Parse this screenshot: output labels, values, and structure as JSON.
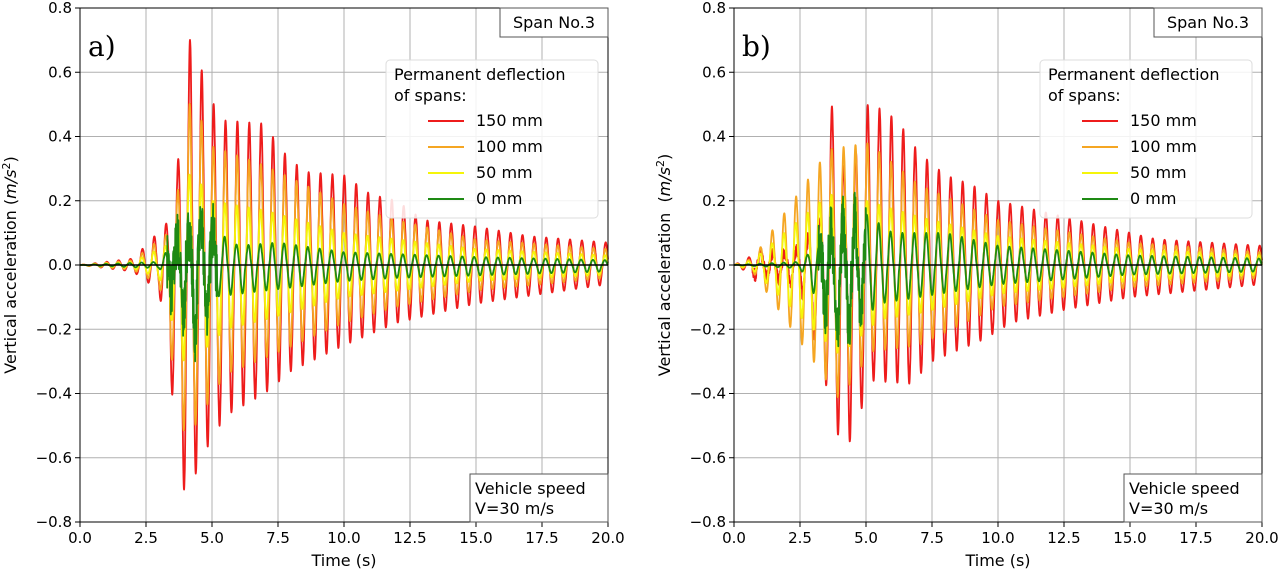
{
  "chart_data": [
    {
      "type": "line",
      "panel_label": "a)",
      "xlabel": "Time (s)",
      "ylabel": {
        "prefix": "Vertical acceleration (",
        "unit": "m/s",
        "sup": "2",
        "suffix": ")"
      },
      "xlim": [
        0,
        20
      ],
      "ylim": [
        -0.8,
        0.8
      ],
      "xticks": [
        "0.0",
        "2.5",
        "5.0",
        "7.5",
        "10.0",
        "12.5",
        "15.0",
        "17.5",
        "20.0"
      ],
      "yticks": [
        "0.8",
        "0.6",
        "0.4",
        "0.2",
        "0.0",
        "−0.2",
        "−0.4",
        "−0.6",
        "−0.8"
      ],
      "grid": true,
      "annotation_top": "Span No.3",
      "annotation_bottom": [
        "Vehicle speed",
        "V=30 m/s"
      ],
      "legend": {
        "title": [
          "Permanent deflection",
          "of spans:"
        ],
        "placement": "upper-right"
      },
      "oscillation_period_s": 0.45,
      "series": [
        {
          "name": "150 mm",
          "color": "#ee1c1c",
          "peak_max": [
            [
              0,
              0
            ],
            [
              1,
              0.01
            ],
            [
              2,
              0.02
            ],
            [
              2.6,
              0.07
            ],
            [
              3.5,
              0.15
            ],
            [
              4.2,
              0.73
            ],
            [
              4.9,
              0.52
            ],
            [
              5.5,
              0.45
            ],
            [
              7,
              0.44
            ],
            [
              7.6,
              0.36
            ],
            [
              8.5,
              0.29
            ],
            [
              10,
              0.28
            ],
            [
              11,
              0.22
            ],
            [
              12,
              0.2
            ],
            [
              13,
              0.14
            ],
            [
              15,
              0.12
            ],
            [
              17,
              0.09
            ],
            [
              20,
              0.07
            ]
          ],
          "peak_min": [
            [
              0,
              0
            ],
            [
              2,
              -0.02
            ],
            [
              3,
              -0.08
            ],
            [
              4,
              -0.74
            ],
            [
              4.6,
              -0.6
            ],
            [
              5.5,
              -0.47
            ],
            [
              7,
              -0.4
            ],
            [
              8,
              -0.33
            ],
            [
              10,
              -0.25
            ],
            [
              12,
              -0.18
            ],
            [
              15,
              -0.12
            ],
            [
              20,
              -0.06
            ]
          ]
        },
        {
          "name": "100 mm",
          "color": "#f5a623",
          "peak_max": [
            [
              0,
              0
            ],
            [
              2,
              0.015
            ],
            [
              3.5,
              0.11
            ],
            [
              4.2,
              0.53
            ],
            [
              5,
              0.37
            ],
            [
              7,
              0.31
            ],
            [
              10,
              0.19
            ],
            [
              12,
              0.14
            ],
            [
              15,
              0.08
            ],
            [
              20,
              0.05
            ]
          ],
          "peak_min": [
            [
              0,
              0
            ],
            [
              2,
              -0.015
            ],
            [
              3,
              -0.06
            ],
            [
              4,
              -0.55
            ],
            [
              5.5,
              -0.34
            ],
            [
              7,
              -0.29
            ],
            [
              10,
              -0.18
            ],
            [
              12,
              -0.13
            ],
            [
              15,
              -0.08
            ],
            [
              20,
              -0.04
            ]
          ]
        },
        {
          "name": "50 mm",
          "color": "#f5f50a",
          "peak_max": [
            [
              0,
              0
            ],
            [
              2,
              0.01
            ],
            [
              3.5,
              0.07
            ],
            [
              4.2,
              0.3
            ],
            [
              5,
              0.2
            ],
            [
              7,
              0.17
            ],
            [
              10,
              0.1
            ],
            [
              15,
              0.05
            ],
            [
              20,
              0.03
            ]
          ],
          "peak_min": [
            [
              0,
              0
            ],
            [
              2,
              -0.01
            ],
            [
              3,
              -0.04
            ],
            [
              4,
              -0.32
            ],
            [
              5.5,
              -0.2
            ],
            [
              7,
              -0.17
            ],
            [
              10,
              -0.1
            ],
            [
              15,
              -0.05
            ],
            [
              20,
              -0.03
            ]
          ]
        },
        {
          "name": "0 mm",
          "color": "#1e8a14",
          "peak_max": [
            [
              0,
              0
            ],
            [
              3,
              0.01
            ],
            [
              3.6,
              0.08
            ],
            [
              4.7,
              0.13
            ],
            [
              6,
              0.06
            ],
            [
              7.5,
              0.07
            ],
            [
              10,
              0.04
            ],
            [
              15,
              0.025
            ],
            [
              20,
              0.015
            ]
          ],
          "peak_min": [
            [
              0,
              0
            ],
            [
              3,
              -0.01
            ],
            [
              3.6,
              -0.1
            ],
            [
              4.2,
              -0.25
            ],
            [
              5,
              -0.1
            ],
            [
              7,
              -0.08
            ],
            [
              10,
              -0.05
            ],
            [
              12,
              -0.04
            ],
            [
              20,
              -0.02
            ]
          ],
          "noise": [
            3.3,
            5.2,
            0.09
          ]
        }
      ]
    },
    {
      "type": "line",
      "panel_label": "b)",
      "xlabel": "Time (s)",
      "ylabel": {
        "prefix": "Vertical acceleration  (",
        "unit": "m/s",
        "sup": "2",
        "suffix": ")"
      },
      "xlim": [
        0,
        20
      ],
      "ylim": [
        -0.8,
        0.8
      ],
      "xticks": [
        "0.0",
        "2.5",
        "5.0",
        "7.5",
        "10.0",
        "12.5",
        "15.0",
        "17.5",
        "20.0"
      ],
      "yticks": [
        "0.8",
        "0.6",
        "0.4",
        "0.2",
        "0.0",
        "−0.2",
        "−0.4",
        "−0.6",
        "−0.8"
      ],
      "grid": true,
      "annotation_top": "Span No.3",
      "annotation_bottom": [
        "Vehicle speed",
        "V=30 m/s"
      ],
      "legend": {
        "title": [
          "Permanent deflection",
          "of spans:"
        ],
        "placement": "upper-right"
      },
      "oscillation_period_s": 0.45,
      "series": [
        {
          "name": "150 mm",
          "color": "#ee1c1c",
          "peak_max": [
            [
              0,
              0
            ],
            [
              0.7,
              0.03
            ],
            [
              2.5,
              0.05
            ],
            [
              3.3,
              0.15
            ],
            [
              3.6,
              0.54
            ],
            [
              4.3,
              0.25
            ],
            [
              5.1,
              0.51
            ],
            [
              6.2,
              0.45
            ],
            [
              7,
              0.35
            ],
            [
              8,
              0.28
            ],
            [
              9,
              0.25
            ],
            [
              10,
              0.2
            ],
            [
              12,
              0.16
            ],
            [
              14,
              0.12
            ],
            [
              16,
              0.08
            ],
            [
              20,
              0.06
            ]
          ],
          "peak_min": [
            [
              0,
              0
            ],
            [
              0.7,
              -0.03
            ],
            [
              2.5,
              -0.06
            ],
            [
              3.6,
              -0.41
            ],
            [
              4.0,
              -0.55
            ],
            [
              4.4,
              -0.55
            ],
            [
              5.2,
              -0.36
            ],
            [
              6.7,
              -0.37
            ],
            [
              7.5,
              -0.3
            ],
            [
              9.5,
              -0.23
            ],
            [
              10.5,
              -0.18
            ],
            [
              12.5,
              -0.14
            ],
            [
              15,
              -0.1
            ],
            [
              20,
              -0.06
            ]
          ],
          "noise": [
            0.7,
            3.0,
            0.02
          ]
        },
        {
          "name": "100 mm",
          "color": "#f5a623",
          "peak_max": [
            [
              0,
              0
            ],
            [
              0.7,
              0.02
            ],
            [
              3.6,
              0.36
            ],
            [
              5.1,
              0.38
            ],
            [
              7,
              0.25
            ],
            [
              10,
              0.14
            ],
            [
              15,
              0.07
            ],
            [
              20,
              0.04
            ]
          ],
          "peak_min": [
            [
              0,
              0
            ],
            [
              0.7,
              -0.02
            ],
            [
              4,
              -0.42
            ],
            [
              5.2,
              -0.27
            ],
            [
              7,
              -0.25
            ],
            [
              10,
              -0.13
            ],
            [
              15,
              -0.07
            ],
            [
              20,
              -0.04
            ]
          ]
        },
        {
          "name": "50 mm",
          "color": "#f5f50a",
          "peak_max": [
            [
              0,
              0
            ],
            [
              0.7,
              0.015
            ],
            [
              3.6,
              0.22
            ],
            [
              5,
              0.2
            ],
            [
              7,
              0.15
            ],
            [
              10,
              0.09
            ],
            [
              15,
              0.05
            ],
            [
              20,
              0.03
            ]
          ],
          "peak_min": [
            [
              0,
              0
            ],
            [
              0.7,
              -0.015
            ],
            [
              4,
              -0.28
            ],
            [
              5.5,
              -0.17
            ],
            [
              7,
              -0.15
            ],
            [
              10,
              -0.09
            ],
            [
              15,
              -0.05
            ],
            [
              20,
              -0.03
            ]
          ]
        },
        {
          "name": "0 mm",
          "color": "#1e8a14",
          "peak_max": [
            [
              0,
              0
            ],
            [
              2.5,
              0.01
            ],
            [
              3.4,
              0.08
            ],
            [
              4.8,
              0.17
            ],
            [
              6,
              0.1
            ],
            [
              8,
              0.1
            ],
            [
              10,
              0.06
            ],
            [
              15,
              0.03
            ],
            [
              20,
              0.02
            ]
          ],
          "peak_min": [
            [
              0,
              0
            ],
            [
              2.5,
              -0.01
            ],
            [
              4,
              -0.24
            ],
            [
              5.5,
              -0.12
            ],
            [
              7,
              -0.1
            ],
            [
              10,
              -0.06
            ],
            [
              15,
              -0.03
            ],
            [
              20,
              -0.02
            ]
          ],
          "noise": [
            3.2,
            5.0,
            0.09
          ]
        }
      ]
    }
  ]
}
